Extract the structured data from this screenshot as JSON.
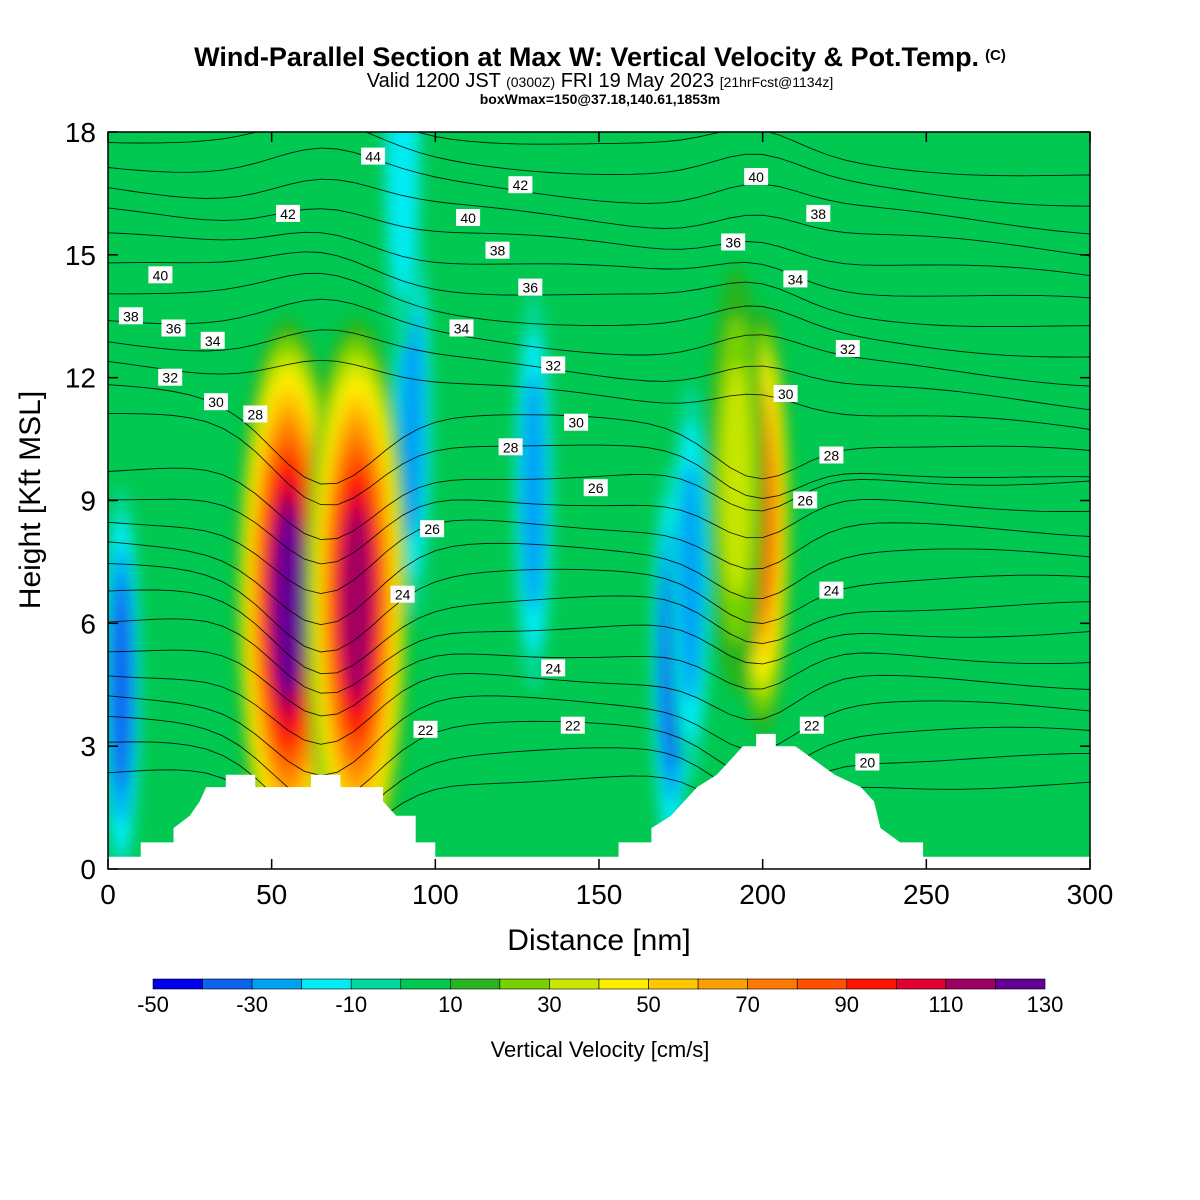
{
  "header": {
    "title": "Wind-Parallel Section at Max W: Vertical Velocity & Pot.Temp.",
    "copyright": "(C)",
    "valid_main": "Valid 1200 JST",
    "valid_utc": "(0300Z)",
    "valid_date": "FRI 19 May 2023",
    "forecast": "[21hrFcst@1134z]",
    "boxwmax": "boxWmax=150@37.18,140.61,1853m"
  },
  "chart_data": {
    "type": "heatmap",
    "xlabel": "Distance [nm]",
    "ylabel": "Height [Kft MSL]",
    "xlim": [
      0,
      300
    ],
    "ylim": [
      0,
      18
    ],
    "x_ticks": [
      0,
      50,
      100,
      150,
      200,
      250,
      300
    ],
    "y_ticks": [
      0,
      3,
      6,
      9,
      12,
      15,
      18
    ],
    "colorbar": {
      "title": "Vertical Velocity [cm/s]",
      "levels": [
        -50,
        -40,
        -30,
        -20,
        -10,
        0,
        10,
        20,
        30,
        40,
        50,
        60,
        70,
        80,
        90,
        100,
        110,
        120,
        130
      ],
      "tick_labels": [
        "-50",
        "-30",
        "-10",
        "10",
        "30",
        "50",
        "70",
        "90",
        "110",
        "130"
      ],
      "colors": [
        "#0000f0",
        "#0a64f0",
        "#00a0f5",
        "#00ecf5",
        "#00d89a",
        "#00c850",
        "#28b41e",
        "#78d200",
        "#c8e600",
        "#ffed00",
        "#ffc800",
        "#ffa000",
        "#ff7800",
        "#ff5000",
        "#ff1400",
        "#e00032",
        "#a00064",
        "#640096"
      ]
    },
    "updrafts": [
      {
        "x": 55,
        "y": 6.5,
        "peak": 130
      },
      {
        "x": 76,
        "y": 6.5,
        "peak": 120
      },
      {
        "x": 200,
        "y": 8.5,
        "peak": 90
      },
      {
        "x": 192,
        "y": 9.5,
        "peak": 40
      }
    ],
    "downdrafts": [
      {
        "x": 4,
        "y": 4.5,
        "min": -40
      },
      {
        "x": 93,
        "y": 11,
        "min": -30
      },
      {
        "x": 130,
        "y": 9.2,
        "min": -30
      },
      {
        "x": 172,
        "y": 5,
        "min": -40
      },
      {
        "x": 178,
        "y": 7,
        "min": -30
      },
      {
        "x": 90,
        "y": 17.5,
        "min": -20
      }
    ],
    "terrain": [
      {
        "x": 0,
        "y": 0.3
      },
      {
        "x": 10,
        "y": 0.3
      },
      {
        "x": 10,
        "y": 0.65
      },
      {
        "x": 20,
        "y": 0.65
      },
      {
        "x": 20,
        "y": 1.0
      },
      {
        "x": 25,
        "y": 1.3
      },
      {
        "x": 28,
        "y": 1.65
      },
      {
        "x": 30,
        "y": 2.0
      },
      {
        "x": 36,
        "y": 2.0
      },
      {
        "x": 36,
        "y": 2.3
      },
      {
        "x": 45,
        "y": 2.3
      },
      {
        "x": 45,
        "y": 2.0
      },
      {
        "x": 62,
        "y": 2.0
      },
      {
        "x": 62,
        "y": 2.3
      },
      {
        "x": 71,
        "y": 2.3
      },
      {
        "x": 71,
        "y": 2.0
      },
      {
        "x": 84,
        "y": 2.0
      },
      {
        "x": 84,
        "y": 1.65
      },
      {
        "x": 88,
        "y": 1.3
      },
      {
        "x": 94,
        "y": 1.3
      },
      {
        "x": 94,
        "y": 0.65
      },
      {
        "x": 100,
        "y": 0.65
      },
      {
        "x": 100,
        "y": 0.3
      },
      {
        "x": 156,
        "y": 0.3
      },
      {
        "x": 156,
        "y": 0.65
      },
      {
        "x": 166,
        "y": 0.65
      },
      {
        "x": 166,
        "y": 1.0
      },
      {
        "x": 172,
        "y": 1.3
      },
      {
        "x": 176,
        "y": 1.65
      },
      {
        "x": 180,
        "y": 2.0
      },
      {
        "x": 186,
        "y": 2.3
      },
      {
        "x": 190,
        "y": 2.65
      },
      {
        "x": 194,
        "y": 3.0
      },
      {
        "x": 198,
        "y": 3.0
      },
      {
        "x": 198,
        "y": 3.3
      },
      {
        "x": 204,
        "y": 3.3
      },
      {
        "x": 204,
        "y": 3.0
      },
      {
        "x": 210,
        "y": 3.0
      },
      {
        "x": 216,
        "y": 2.65
      },
      {
        "x": 222,
        "y": 2.3
      },
      {
        "x": 230,
        "y": 2.0
      },
      {
        "x": 234,
        "y": 1.65
      },
      {
        "x": 236,
        "y": 1.0
      },
      {
        "x": 242,
        "y": 0.65
      },
      {
        "x": 249,
        "y": 0.65
      },
      {
        "x": 249,
        "y": 0.3
      },
      {
        "x": 300,
        "y": 0.3
      }
    ],
    "theta_contour_labels": [
      {
        "text": "44",
        "x": 81,
        "y": 17.4
      },
      {
        "text": "42",
        "x": 55,
        "y": 16.0
      },
      {
        "text": "42",
        "x": 126,
        "y": 16.7
      },
      {
        "text": "40",
        "x": 16,
        "y": 14.5
      },
      {
        "text": "40",
        "x": 110,
        "y": 15.9
      },
      {
        "text": "40",
        "x": 198,
        "y": 16.9
      },
      {
        "text": "38",
        "x": 7,
        "y": 13.5
      },
      {
        "text": "38",
        "x": 119,
        "y": 15.1
      },
      {
        "text": "38",
        "x": 217,
        "y": 16.0
      },
      {
        "text": "36",
        "x": 20,
        "y": 13.2
      },
      {
        "text": "36",
        "x": 129,
        "y": 14.2
      },
      {
        "text": "36",
        "x": 191,
        "y": 15.3
      },
      {
        "text": "34",
        "x": 32,
        "y": 12.9
      },
      {
        "text": "34",
        "x": 108,
        "y": 13.2
      },
      {
        "text": "34",
        "x": 210,
        "y": 14.4
      },
      {
        "text": "32",
        "x": 19,
        "y": 12.0
      },
      {
        "text": "32",
        "x": 136,
        "y": 12.3
      },
      {
        "text": "32",
        "x": 226,
        "y": 12.7
      },
      {
        "text": "30",
        "x": 33,
        "y": 11.4
      },
      {
        "text": "30",
        "x": 143,
        "y": 10.9
      },
      {
        "text": "30",
        "x": 207,
        "y": 11.6
      },
      {
        "text": "28",
        "x": 45,
        "y": 11.1
      },
      {
        "text": "28",
        "x": 123,
        "y": 10.3
      },
      {
        "text": "28",
        "x": 221,
        "y": 10.1
      },
      {
        "text": "26",
        "x": 99,
        "y": 8.3
      },
      {
        "text": "26",
        "x": 149,
        "y": 9.3
      },
      {
        "text": "26",
        "x": 213,
        "y": 9.0
      },
      {
        "text": "24",
        "x": 90,
        "y": 6.7
      },
      {
        "text": "24",
        "x": 136,
        "y": 4.9
      },
      {
        "text": "24",
        "x": 221,
        "y": 6.8
      },
      {
        "text": "22",
        "x": 97,
        "y": 3.4
      },
      {
        "text": "22",
        "x": 142,
        "y": 3.5
      },
      {
        "text": "22",
        "x": 215,
        "y": 3.5
      },
      {
        "text": "20",
        "x": 232,
        "y": 2.6
      }
    ]
  }
}
